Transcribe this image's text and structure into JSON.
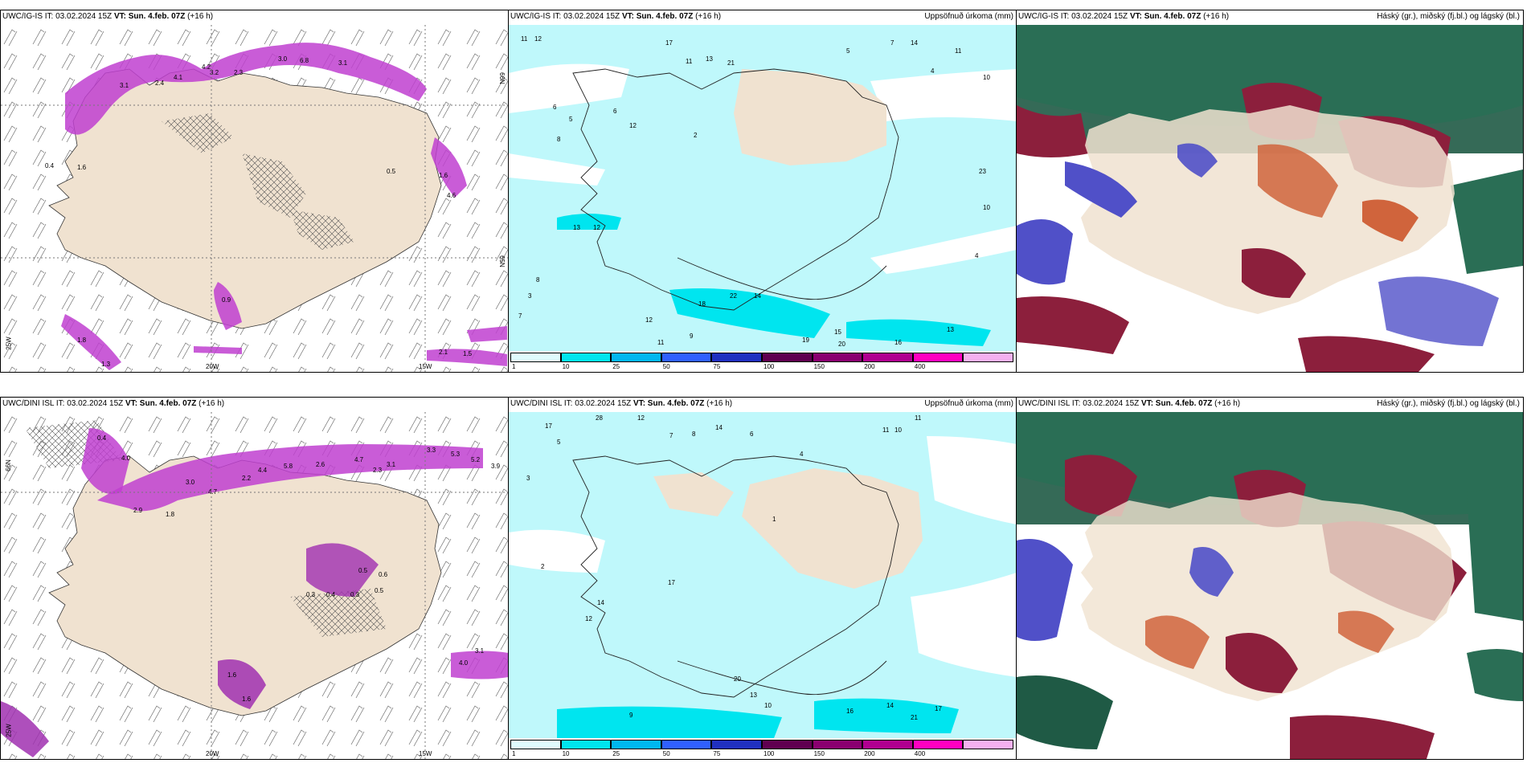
{
  "panels": [
    {
      "id": "tl",
      "title_prefix": "UWC/IG-IS IT: 03.02.2024 15Z",
      "vt": "VT: Sun. 4.feb. 07Z",
      "lead": "(+16 h)",
      "right_title": "",
      "axis_labels": [
        "20W",
        "15W",
        "25W",
        "66N",
        "65N"
      ],
      "values": [
        "3.0",
        "6.8",
        "3.1",
        "4.2",
        "3.2",
        "2.3",
        "2.4",
        "4.1",
        "3.1",
        "1.6",
        "0.4",
        "1.6",
        "4.6",
        "0.5",
        "0.9",
        "1.8",
        "2.1",
        "1.5",
        "1.3"
      ]
    },
    {
      "id": "tc",
      "title_prefix": "UWC/IG-IS IT: 03.02.2024 15Z",
      "vt": "VT: Sun. 4.feb. 07Z",
      "lead": "(+16 h)",
      "right_title": "Uppsöfnuð úrkoma (mm)",
      "values": [
        "11",
        "12",
        "17",
        "13",
        "11",
        "21",
        "5",
        "7",
        "14",
        "11",
        "10",
        "4",
        "6",
        "5",
        "6",
        "8",
        "2",
        "12",
        "23",
        "10",
        "13",
        "12",
        "22",
        "18",
        "14",
        "19",
        "20",
        "15",
        "16",
        "13",
        "12",
        "11",
        "9",
        "4",
        "3",
        "7",
        "8"
      ]
    },
    {
      "id": "tr",
      "title_prefix": "UWC/IG-IS IT: 03.02.2024 15Z",
      "vt": "VT: Sun. 4.feb. 07Z",
      "lead": "(+16 h)",
      "right_title": "Háský (gr.), miðský (fj.bl.) og lágský (bl.)"
    },
    {
      "id": "bl",
      "title_prefix": "UWC/DINI ISL IT: 03.02.2024 15Z",
      "vt": "VT: Sun. 4.feb. 07Z",
      "lead": "(+16 h)",
      "right_title": "",
      "axis_labels": [
        "20W",
        "15W",
        "25W",
        "66N"
      ],
      "values": [
        "0.4",
        "4.0",
        "3.0",
        "4.7",
        "2.2",
        "4.4",
        "5.8",
        "2.6",
        "4.7",
        "2.3",
        "3.1",
        "3.3",
        "5.3",
        "5.2",
        "3.9",
        "1.8",
        "2.9",
        "0.5",
        "0.6",
        "0.3",
        "0.4",
        "0.3",
        "0.5",
        "1.6",
        "1.6",
        "3.1",
        "4.0"
      ]
    },
    {
      "id": "bc",
      "title_prefix": "UWC/DINI ISL IT: 03.02.2024 15Z",
      "vt": "VT: Sun. 4.feb. 07Z",
      "lead": "(+16 h)",
      "right_title": "Uppsöfnuð úrkoma (mm)",
      "values": [
        "17",
        "28",
        "12",
        "14",
        "11",
        "10",
        "11",
        "8",
        "7",
        "5",
        "6",
        "4",
        "3",
        "2",
        "12",
        "14",
        "17",
        "13",
        "10",
        "20",
        "16",
        "21",
        "17",
        "14",
        "9",
        "1"
      ]
    },
    {
      "id": "br",
      "title_prefix": "UWC/DINI ISL IT: 03.02.2024 15Z",
      "vt": "VT: Sun. 4.feb. 07Z",
      "lead": "(+16 h)",
      "right_title": "Háský (gr.), miðský (fj.bl.) og lágský (bl.)"
    }
  ],
  "colorbar": {
    "labels": [
      "1",
      "10",
      "25",
      "50",
      "75",
      "100",
      "150",
      "200",
      "400"
    ],
    "colors": [
      "#e0fbfd",
      "#00e5ef",
      "#00b7f0",
      "#3060ff",
      "#2030c0",
      "#600050",
      "#8a0070",
      "#b00090",
      "#ff00c0",
      "#f5b0f0"
    ]
  },
  "colors": {
    "land": "#f0e2d0",
    "sea_light": "#bff8fb",
    "precip_magenta": "#c040d0",
    "high_cloud": "#1f5a45",
    "mid_cloud": "#8c1f3c",
    "low_cloud": "#5050c8",
    "orange": "#d0643c"
  }
}
